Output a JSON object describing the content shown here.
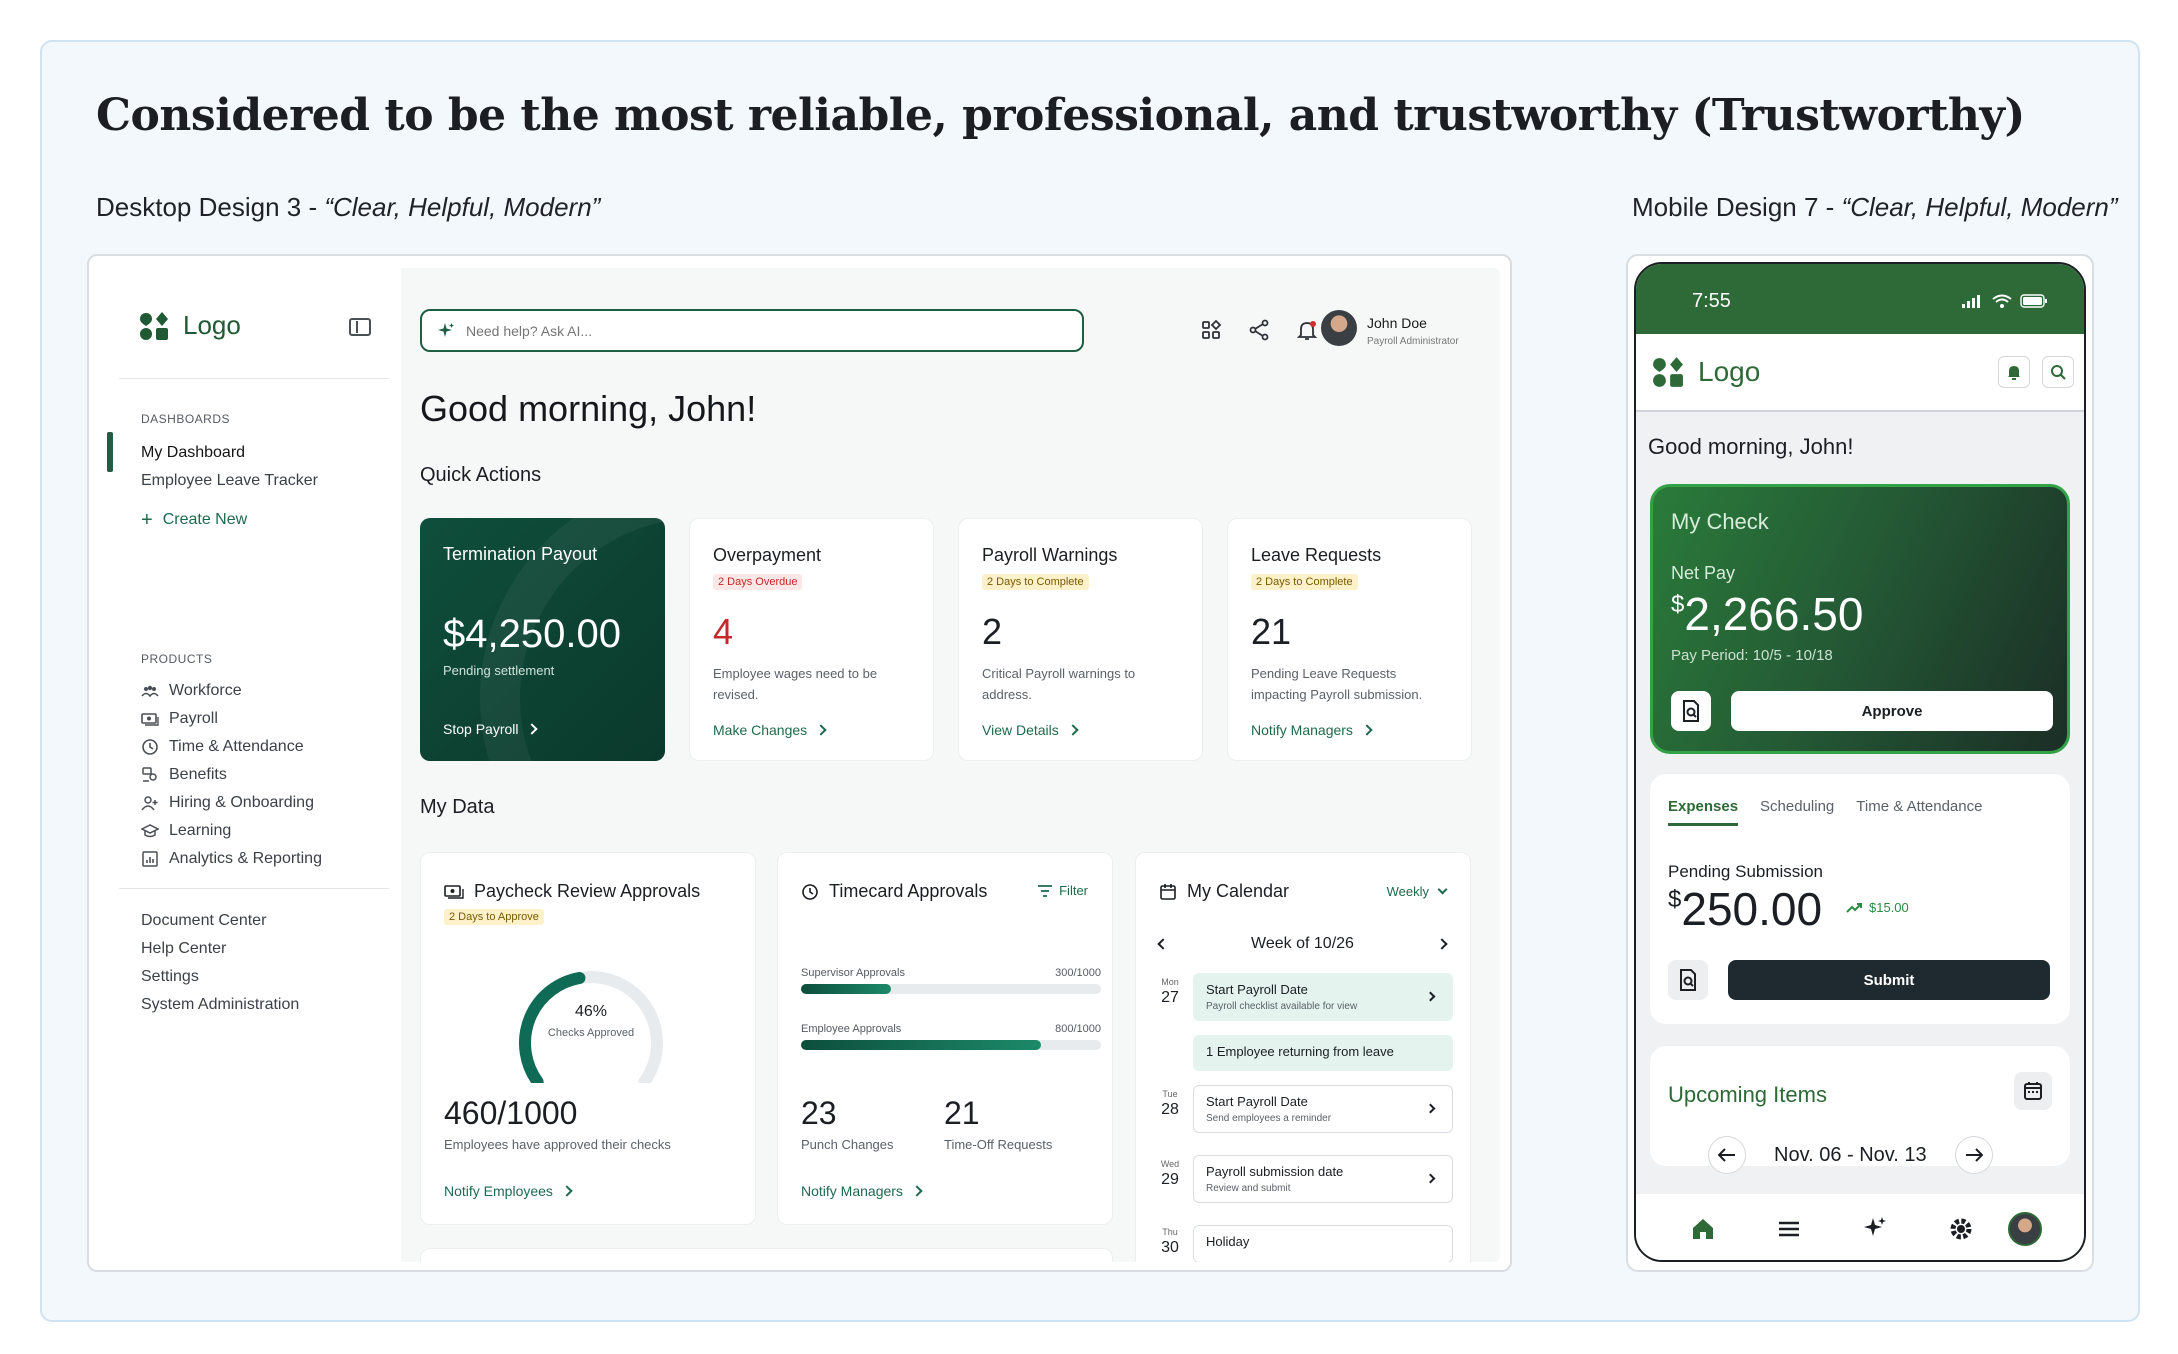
{
  "headline": "Considered to be the most reliable, professional, and trustworthy (Trustworthy)",
  "desktop_caption": {
    "prefix": "Desktop Design 3 - ",
    "quote": "“Clear, Helpful, Modern”"
  },
  "mobile_caption": {
    "prefix": "Mobile Design 7 - ",
    "quote": "“Clear, Helpful, Modern”"
  },
  "colors": {
    "brand_green": "#1d5f44",
    "dark_card": "#0f4f3c",
    "mobile_green": "#2d6a37",
    "overdue_red": "#c42a2a"
  },
  "desktop": {
    "logo": "Logo",
    "sidebar": {
      "dashboards_heading": "DASHBOARDS",
      "dashboards": [
        {
          "label": "My Dashboard",
          "active": true
        },
        {
          "label": "Employee Leave Tracker",
          "active": false
        }
      ],
      "create_new": "Create New",
      "products_heading": "PRODUCTS",
      "products": [
        {
          "label": "Workforce",
          "icon": "people-icon"
        },
        {
          "label": "Payroll",
          "icon": "cash-icon"
        },
        {
          "label": "Time & Attendance",
          "icon": "clock-icon"
        },
        {
          "label": "Benefits",
          "icon": "benefits-icon"
        },
        {
          "label": "Hiring & Onboarding",
          "icon": "hiring-icon"
        },
        {
          "label": "Learning",
          "icon": "graduation-cap-icon"
        },
        {
          "label": "Analytics & Reporting",
          "icon": "chart-icon"
        }
      ],
      "footer": [
        "Document Center",
        "Help Center",
        "Settings",
        "System Administration"
      ]
    },
    "search": {
      "placeholder": "Need help? Ask AI..."
    },
    "user": {
      "name": "John Doe",
      "role": "Payroll Administrator"
    },
    "greeting": "Good morning, John!",
    "quick_actions_title": "Quick Actions",
    "quick_actions": [
      {
        "title": "Termination Payout",
        "value": "$4,250.00",
        "desc": "Pending settlement",
        "link": "Stop Payroll"
      },
      {
        "title": "Overpayment",
        "badge": "2 Days Overdue",
        "value": "4",
        "desc": "Employee wages need to be revised.",
        "link": "Make Changes"
      },
      {
        "title": "Payroll Warnings",
        "badge": "2 Days to Complete",
        "value": "2",
        "desc": "Critical Payroll warnings to address.",
        "link": "View Details"
      },
      {
        "title": "Leave Requests",
        "badge": "2 Days to Complete",
        "value": "21",
        "desc": "Pending Leave Requests impacting Payroll submission.",
        "link": "Notify Managers"
      }
    ],
    "my_data_title": "My Data",
    "paycheck": {
      "title": "Paycheck Review Approvals",
      "badge": "2 Days to Approve",
      "gauge_percent": 46,
      "gauge_pct_label": "46%",
      "gauge_label": "Checks Approved",
      "value": "460/1000",
      "desc": "Employees have approved their checks",
      "link": "Notify Employees"
    },
    "timecard": {
      "title": "Timecard Approvals",
      "filter": "Filter",
      "bars": [
        {
          "label": "Supervisor Approvals",
          "count": "300/1000",
          "fraction": 0.3
        },
        {
          "label": "Employee Approvals",
          "count": "800/1000",
          "fraction": 0.8
        }
      ],
      "stats": [
        {
          "value": "23",
          "label": "Punch Changes"
        },
        {
          "value": "21",
          "label": "Time-Off Requests"
        }
      ],
      "link": "Notify Managers"
    },
    "calendar": {
      "title": "My Calendar",
      "view": "Weekly",
      "week": "Week of 10/26",
      "days": [
        {
          "dow": "Mon",
          "date": "27"
        },
        {
          "dow": "Tue",
          "date": "28"
        },
        {
          "dow": "Wed",
          "date": "29"
        },
        {
          "dow": "Thu",
          "date": "30"
        }
      ],
      "events": [
        {
          "title": "Start Payroll Date",
          "sub": "Payroll checklist available for view"
        },
        {
          "title": "1 Employee returning from leave"
        },
        {
          "title": "Start Payroll Date",
          "sub": "Send employees a reminder"
        },
        {
          "title": "Payroll submission date",
          "sub": "Review and submit"
        },
        {
          "title": "Holiday"
        }
      ]
    }
  },
  "mobile": {
    "time": "7:55",
    "logo": "Logo",
    "greeting": "Good morning, John!",
    "check": {
      "title": "My Check",
      "net_pay_label": "Net Pay",
      "currency": "$",
      "amount": "2,266.50",
      "period": "Pay Period: 10/5 - 10/18",
      "approve": "Approve"
    },
    "tabs": [
      "Expenses",
      "Scheduling",
      "Time & Attendance"
    ],
    "pending": {
      "label": "Pending Submission",
      "currency": "$",
      "amount": "250.00",
      "trend": "$15.00",
      "submit": "Submit"
    },
    "upcoming": {
      "title": "Upcoming Items",
      "range": "Nov. 06 - Nov. 13"
    }
  }
}
